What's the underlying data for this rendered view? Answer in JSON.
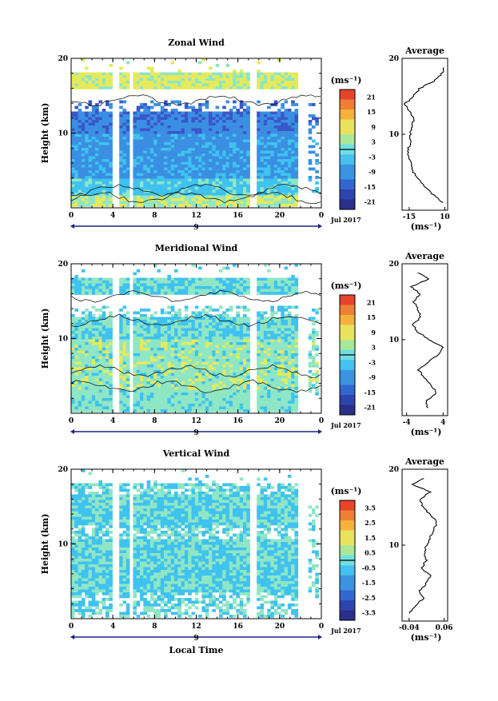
{
  "chart_data": [
    {
      "type": "heatmap",
      "title": "Zonal Wind",
      "ylabel": "Height (km)",
      "xlabel": "",
      "xlim": [
        0,
        24
      ],
      "ylim": [
        0,
        20
      ],
      "x_ticks": [
        "0",
        "4",
        "8",
        "12",
        "16",
        "20",
        "0"
      ],
      "y_ticks": [
        "20",
        "10"
      ],
      "date_label": "9",
      "month_label": "Jul 2017",
      "colorbar": {
        "unit": "(ms⁻¹)",
        "ticks": [
          "21",
          "15",
          "9",
          "3",
          "-3",
          "-9",
          "-15",
          "-21"
        ],
        "range": [
          -24,
          24
        ]
      },
      "profile": {
        "title": "Average",
        "unit": "(ms⁻¹)",
        "x_ticks": [
          "-15",
          "10"
        ],
        "xlim": [
          -20,
          12
        ],
        "height_km": [
          1,
          2,
          3,
          4,
          5,
          6,
          7,
          8,
          9,
          10,
          11,
          12,
          13,
          14,
          15,
          16,
          17,
          18,
          19
        ],
        "value": [
          8,
          2,
          -3,
          -8,
          -12,
          -14,
          -15,
          -16,
          -14,
          -14,
          -13,
          -12,
          -15,
          -18,
          -12,
          -8,
          2,
          8,
          10
        ]
      }
    },
    {
      "type": "heatmap",
      "title": "Meridional Wind",
      "ylabel": "Height (km)",
      "xlabel": "",
      "xlim": [
        0,
        24
      ],
      "ylim": [
        0,
        20
      ],
      "x_ticks": [
        "0",
        "4",
        "8",
        "12",
        "16",
        "20",
        "0"
      ],
      "y_ticks": [
        "20",
        "10"
      ],
      "date_label": "9",
      "month_label": "Jul 2017",
      "colorbar": {
        "unit": "(ms⁻¹)",
        "ticks": [
          "21",
          "15",
          "9",
          "3",
          "-3",
          "-9",
          "-15",
          "-21"
        ],
        "range": [
          -24,
          24
        ]
      },
      "profile": {
        "title": "Average",
        "unit": "(ms⁻¹)",
        "x_ticks": [
          "-4",
          "4"
        ],
        "xlim": [
          -5,
          5
        ],
        "height_km": [
          1,
          2,
          3,
          4,
          5,
          6,
          7,
          8,
          9,
          10,
          11,
          12,
          13,
          14,
          15,
          16,
          17,
          18,
          19
        ],
        "value": [
          0.5,
          0.5,
          2.5,
          1.5,
          0,
          -1.5,
          0.5,
          3,
          4,
          1,
          -1.5,
          -2.5,
          -1,
          -1.5,
          -2.5,
          -1,
          -3,
          1,
          -2
        ]
      }
    },
    {
      "type": "heatmap",
      "title": "Vertical Wind",
      "ylabel": "Height (km)",
      "xlabel": "Local Time",
      "xlim": [
        0,
        24
      ],
      "ylim": [
        0,
        20
      ],
      "x_ticks": [
        "0",
        "4",
        "8",
        "12",
        "16",
        "20",
        "0"
      ],
      "y_ticks": [
        "20",
        "10"
      ],
      "date_label": "9",
      "month_label": "Jul 2017",
      "colorbar": {
        "unit": "(ms⁻¹)",
        "ticks": [
          "3.5",
          "2.5",
          "1.5",
          "0.5",
          "-0.5",
          "-1.5",
          "-2.5",
          "-3.5"
        ],
        "range": [
          -4,
          4
        ]
      },
      "profile": {
        "title": "Average",
        "unit": "(ms⁻¹)",
        "x_ticks": [
          "-0.04",
          "0.06"
        ],
        "xlim": [
          -0.06,
          0.07
        ],
        "height_km": [
          1,
          2,
          3,
          4,
          5,
          6,
          7,
          8,
          9,
          10,
          11,
          12,
          13,
          14,
          15,
          16,
          17,
          18,
          19
        ],
        "value": [
          -0.04,
          -0.02,
          0.0,
          -0.01,
          0.01,
          0.02,
          -0.005,
          0.01,
          0.005,
          0.01,
          0.02,
          0.03,
          0.04,
          0.02,
          0.0,
          -0.01,
          0.02,
          -0.03,
          0.01
        ]
      }
    }
  ]
}
